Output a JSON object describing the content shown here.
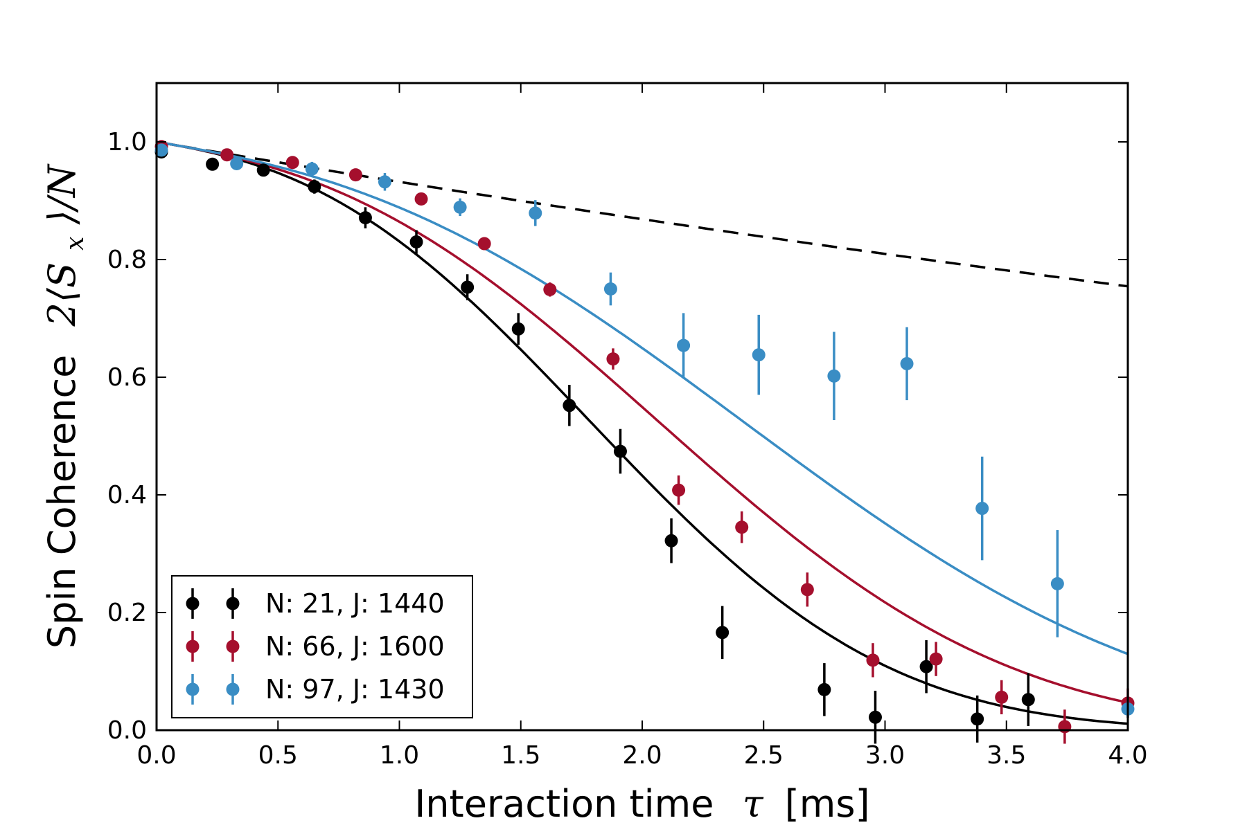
{
  "chart_data": {
    "type": "scatter",
    "xlabel": "Interaction time",
    "xlabel_symbol": "τ",
    "xlabel_unit": "[ms]",
    "ylabel": "Spin Coherence",
    "ylabel_symbol": "2⟨S",
    "ylabel_sub": "x",
    "ylabel_tail": "⟩/N",
    "xlim": [
      0.0,
      4.0
    ],
    "ylim": [
      0.0,
      1.1
    ],
    "xticks": [
      "0.0",
      "0.5",
      "1.0",
      "1.5",
      "2.0",
      "2.5",
      "3.0",
      "3.5",
      "4.0"
    ],
    "yticks": [
      "0.0",
      "0.2",
      "0.4",
      "0.6",
      "0.8",
      "1.0"
    ],
    "xtick_values": [
      0,
      0.5,
      1.0,
      1.5,
      2.0,
      2.5,
      3.0,
      3.5,
      4.0
    ],
    "ytick_values": [
      0,
      0.2,
      0.4,
      0.6,
      0.8,
      1.0
    ],
    "grid": false,
    "legend_position": "bottom-left",
    "series": [
      {
        "name": "N: 21, J: 1440",
        "color": "#000000",
        "fit_center": 2.0,
        "points": [
          {
            "x": 0.02,
            "y": 0.983,
            "err": 0.01
          },
          {
            "x": 0.23,
            "y": 0.962,
            "err": 0.01
          },
          {
            "x": 0.44,
            "y": 0.952,
            "err": 0.01
          },
          {
            "x": 0.65,
            "y": 0.924,
            "err": 0.012
          },
          {
            "x": 0.86,
            "y": 0.871,
            "err": 0.018
          },
          {
            "x": 1.07,
            "y": 0.83,
            "err": 0.02
          },
          {
            "x": 1.28,
            "y": 0.753,
            "err": 0.022
          },
          {
            "x": 1.49,
            "y": 0.682,
            "err": 0.027
          },
          {
            "x": 1.7,
            "y": 0.552,
            "err": 0.035
          },
          {
            "x": 1.91,
            "y": 0.474,
            "err": 0.038
          },
          {
            "x": 2.12,
            "y": 0.322,
            "err": 0.038
          },
          {
            "x": 2.33,
            "y": 0.166,
            "err": 0.045
          },
          {
            "x": 2.75,
            "y": 0.069,
            "err": 0.045
          },
          {
            "x": 2.96,
            "y": 0.022,
            "err": 0.045
          },
          {
            "x": 3.17,
            "y": 0.108,
            "err": 0.045
          },
          {
            "x": 3.38,
            "y": 0.019,
            "err": 0.04
          },
          {
            "x": 3.59,
            "y": 0.052,
            "err": 0.045
          }
        ]
      },
      {
        "name": "N: 66, J: 1600",
        "color": "#a50f2d",
        "fit_center": 2.35,
        "points": [
          {
            "x": 0.02,
            "y": 0.992,
            "err": 0.01
          },
          {
            "x": 0.29,
            "y": 0.978,
            "err": 0.01
          },
          {
            "x": 0.56,
            "y": 0.965,
            "err": 0.01
          },
          {
            "x": 0.82,
            "y": 0.944,
            "err": 0.01
          },
          {
            "x": 1.09,
            "y": 0.903,
            "err": 0.01
          },
          {
            "x": 1.35,
            "y": 0.827,
            "err": 0.01
          },
          {
            "x": 1.62,
            "y": 0.749,
            "err": 0.012
          },
          {
            "x": 1.88,
            "y": 0.631,
            "err": 0.018
          },
          {
            "x": 2.15,
            "y": 0.408,
            "err": 0.025
          },
          {
            "x": 2.41,
            "y": 0.345,
            "err": 0.027
          },
          {
            "x": 2.68,
            "y": 0.239,
            "err": 0.029
          },
          {
            "x": 2.95,
            "y": 0.119,
            "err": 0.029
          },
          {
            "x": 3.21,
            "y": 0.121,
            "err": 0.029
          },
          {
            "x": 3.48,
            "y": 0.056,
            "err": 0.029
          },
          {
            "x": 3.74,
            "y": 0.006,
            "err": 0.029
          },
          {
            "x": 4.0,
            "y": 0.046,
            "err": 0.025
          }
        ]
      },
      {
        "name": "N: 97, J: 1430",
        "color": "#3a8dc4",
        "fit_center": 2.8,
        "points": [
          {
            "x": 0.02,
            "y": 0.986,
            "err": 0.01
          },
          {
            "x": 0.33,
            "y": 0.963,
            "err": 0.01
          },
          {
            "x": 0.64,
            "y": 0.954,
            "err": 0.012
          },
          {
            "x": 0.94,
            "y": 0.932,
            "err": 0.015
          },
          {
            "x": 1.25,
            "y": 0.889,
            "err": 0.015
          },
          {
            "x": 1.56,
            "y": 0.879,
            "err": 0.022
          },
          {
            "x": 1.87,
            "y": 0.75,
            "err": 0.028
          },
          {
            "x": 2.17,
            "y": 0.654,
            "err": 0.055
          },
          {
            "x": 2.48,
            "y": 0.638,
            "err": 0.068
          },
          {
            "x": 2.79,
            "y": 0.602,
            "err": 0.075
          },
          {
            "x": 3.09,
            "y": 0.623,
            "err": 0.062
          },
          {
            "x": 3.4,
            "y": 0.377,
            "err": 0.088
          },
          {
            "x": 3.71,
            "y": 0.249,
            "err": 0.091
          },
          {
            "x": 4.0,
            "y": 0.036,
            "err": 0.015
          }
        ]
      }
    ],
    "reference_line": {
      "style": "dashed",
      "color": "#000000",
      "decay_time": 14.2
    }
  }
}
